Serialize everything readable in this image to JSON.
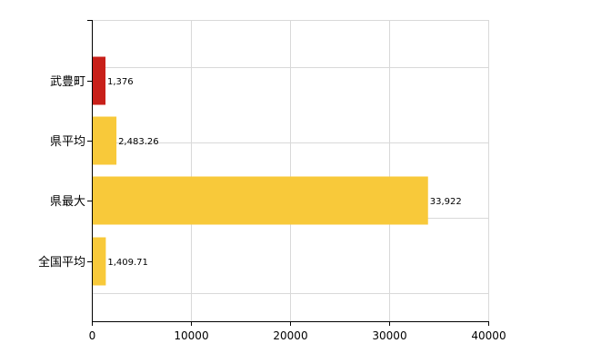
{
  "chart_data": {
    "type": "bar",
    "orientation": "horizontal",
    "categories": [
      "武豊町",
      "県平均",
      "県最大",
      "全国平均"
    ],
    "values": [
      1376,
      2483.26,
      33922,
      1409.71
    ],
    "data_labels": [
      "1,376",
      "2,483.26",
      "33,922",
      "1,409.71"
    ],
    "bar_colors": [
      "#c8201a",
      "#f8c93a",
      "#f8c93a",
      "#f8c93a"
    ],
    "xlim": [
      0,
      40000
    ],
    "x_ticks": [
      0,
      10000,
      20000,
      30000,
      40000
    ],
    "x_tick_labels": [
      "0",
      "10000",
      "20000",
      "30000",
      "40000"
    ],
    "grid": true,
    "title": "",
    "xlabel": "",
    "ylabel": ""
  }
}
